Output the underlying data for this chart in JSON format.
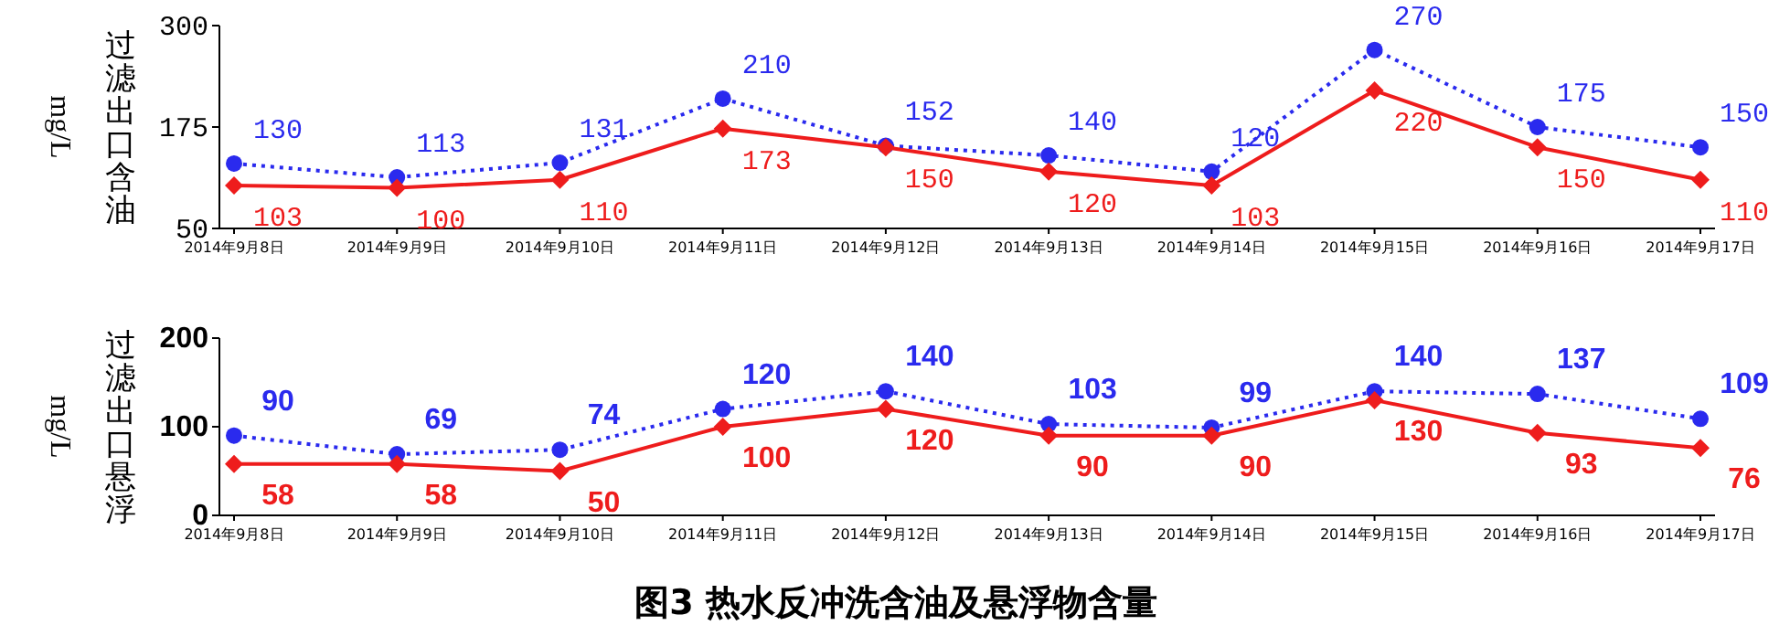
{
  "chart_data": [
    {
      "type": "line",
      "ylabel": "过滤出口含油",
      "annotations": [
        "mg/L"
      ],
      "categories": [
        "2014年9月8日",
        "2014年9月9日",
        "2014年9月10日",
        "2014年9月11日",
        "2014年9月12日",
        "2014年9月13日",
        "2014年9月14日",
        "2014年9月15日",
        "2014年9月16日",
        "2014年9月17日"
      ],
      "ylim": [
        50,
        300
      ],
      "yticks": [
        50,
        175,
        300
      ],
      "data_labels": true,
      "series": [
        {
          "color": "#2a2aee",
          "line_style": "dotted",
          "marker": "circle",
          "values": [
            130,
            113,
            131,
            210,
            152,
            140,
            120,
            270,
            175,
            150
          ]
        },
        {
          "color": "#ee1c1c",
          "line_style": "solid",
          "marker": "diamond",
          "values": [
            103,
            100,
            110,
            173,
            150,
            120,
            103,
            220,
            150,
            110
          ]
        }
      ]
    },
    {
      "type": "line",
      "ylabel": "过滤出口悬浮",
      "annotations": [
        "mg/L"
      ],
      "title": "图3 热水反冲洗含油及悬浮物含量",
      "categories": [
        "2014年9月8日",
        "2014年9月9日",
        "2014年9月10日",
        "2014年9月11日",
        "2014年9月12日",
        "2014年9月13日",
        "2014年9月14日",
        "2014年9月15日",
        "2014年9月16日",
        "2014年9月17日"
      ],
      "ylim": [
        0,
        200
      ],
      "yticks": [
        0,
        100,
        200
      ],
      "data_labels": true,
      "series": [
        {
          "color": "#2a2aee",
          "line_style": "dotted",
          "marker": "circle",
          "values": [
            90,
            69,
            74,
            120,
            140,
            103,
            99,
            140,
            137,
            109
          ]
        },
        {
          "color": "#ee1c1c",
          "line_style": "solid",
          "marker": "diamond",
          "values": [
            58,
            58,
            50,
            100,
            120,
            90,
            90,
            130,
            93,
            76
          ]
        }
      ]
    }
  ]
}
